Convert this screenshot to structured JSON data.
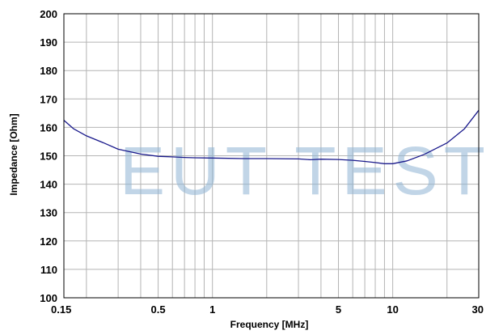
{
  "chart_data": {
    "type": "line",
    "title": "",
    "xlabel": "Frequency [MHz]",
    "ylabel": "Impedance [Ohm]",
    "x_scale": "log",
    "xlim": [
      0.15,
      30
    ],
    "ylim": [
      100,
      200
    ],
    "grid": true,
    "x_tick_labels": [
      {
        "value": 0.15,
        "label": "0.15"
      },
      {
        "value": 0.5,
        "label": "0.5"
      },
      {
        "value": 1,
        "label": "1"
      },
      {
        "value": 5,
        "label": "5"
      },
      {
        "value": 10,
        "label": "10"
      },
      {
        "value": 30,
        "label": "30"
      }
    ],
    "x_grid": [
      0.2,
      0.3,
      0.4,
      0.5,
      0.6,
      0.7,
      0.8,
      0.9,
      1,
      2,
      3,
      4,
      5,
      6,
      7,
      8,
      9,
      10,
      20
    ],
    "y_ticks": [
      100,
      110,
      120,
      130,
      140,
      150,
      160,
      170,
      180,
      190,
      200
    ],
    "series": [
      {
        "color": "#1a1a8c",
        "x": [
          0.15,
          0.17,
          0.2,
          0.25,
          0.3,
          0.4,
          0.5,
          0.6,
          0.7,
          0.8,
          1,
          1.5,
          2,
          3,
          3.5,
          4,
          5,
          6,
          7,
          8,
          9,
          10,
          12,
          15,
          20,
          25,
          30
        ],
        "y": [
          162.5,
          159.5,
          157,
          154.5,
          152.3,
          150.6,
          149.8,
          149.6,
          149.4,
          149.3,
          149.2,
          149.0,
          149.0,
          148.9,
          148.6,
          148.8,
          148.7,
          148.4,
          148.0,
          147.6,
          147.2,
          147.2,
          148.2,
          150.5,
          154.5,
          159.5,
          166.0
        ]
      }
    ]
  },
  "watermark": "EUT TEST"
}
